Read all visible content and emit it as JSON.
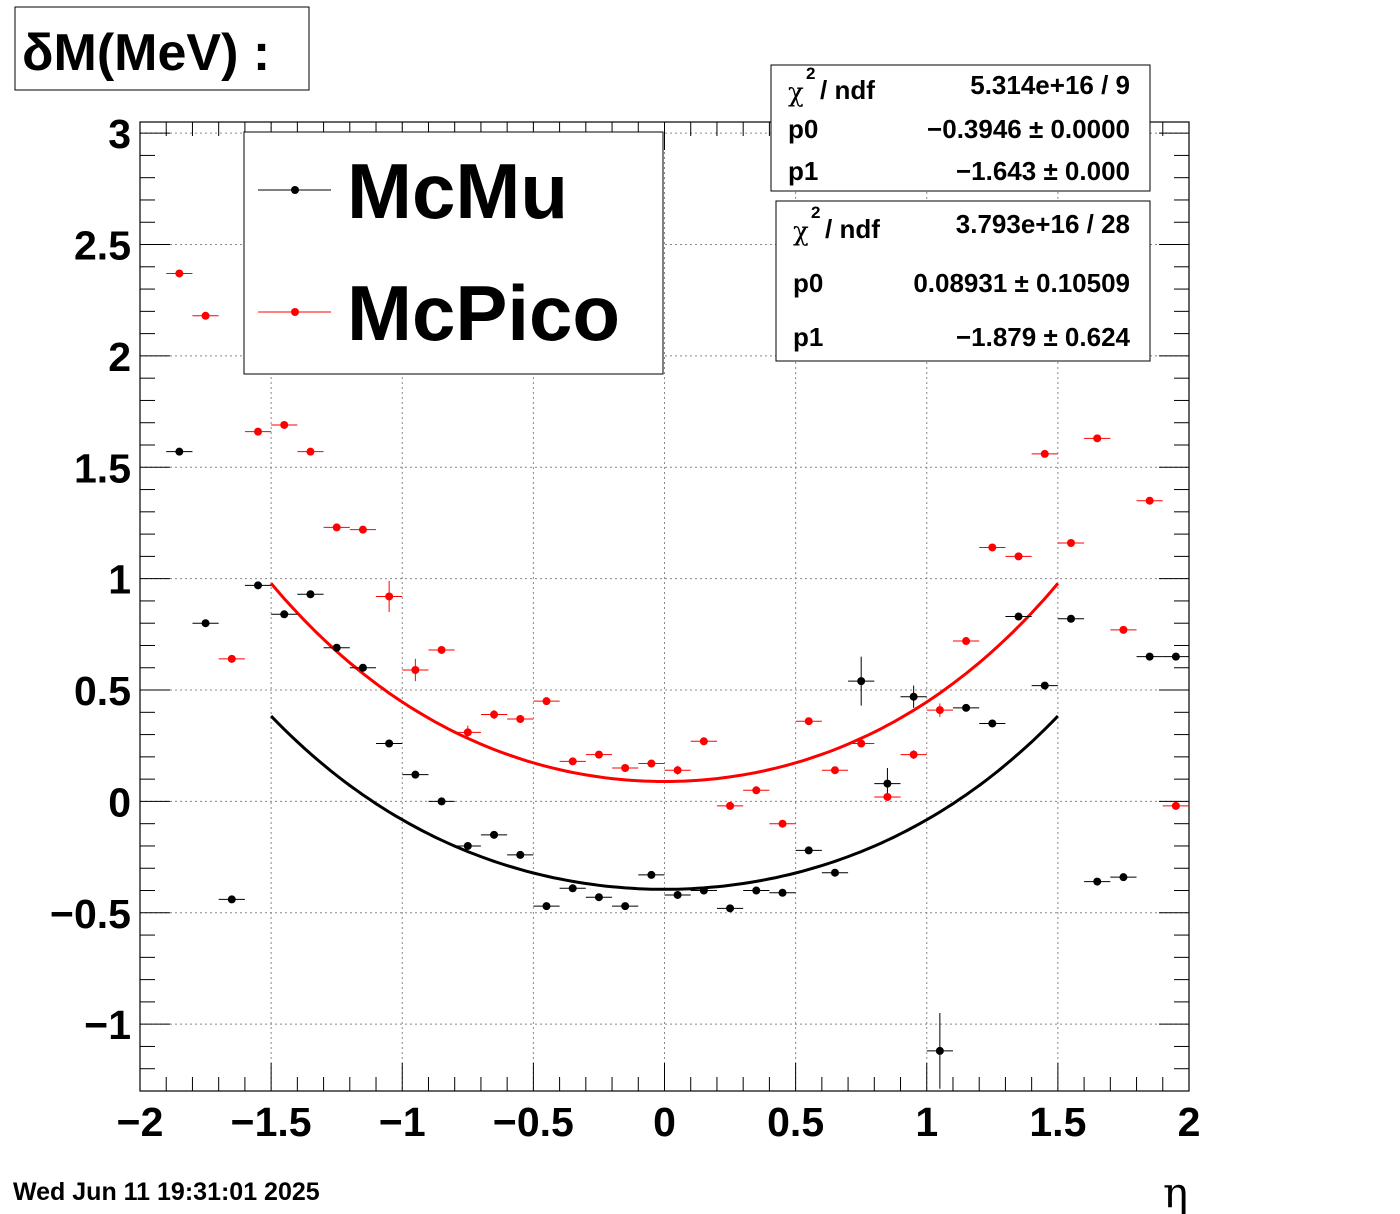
{
  "title": "δM(MeV) :",
  "footer_date": "Wed Jun 11 19:31:01 2025",
  "chart_data": {
    "type": "scatter",
    "xlabel": "η",
    "ylabel": "",
    "xlim": [
      -2,
      2
    ],
    "ylim": [
      -1.3,
      3.05
    ],
    "grid": true,
    "x_ticks": [
      "−2",
      "−1.5",
      "−1",
      "−0.5",
      "0",
      "0.5",
      "1",
      "1.5",
      "2"
    ],
    "y_ticks": [
      "−1",
      "−0.5",
      "0",
      "0.5",
      "1",
      "1.5",
      "2",
      "2.5",
      "3"
    ],
    "legend": {
      "placement": "top-left",
      "entries": [
        {
          "name": "McMu",
          "color": "#000000"
        },
        {
          "name": "McPico",
          "color": "#ff0000"
        }
      ]
    },
    "series": [
      {
        "name": "McMu",
        "color": "#000000",
        "x": [
          -1.85,
          -1.75,
          -1.65,
          -1.55,
          -1.45,
          -1.35,
          -1.25,
          -1.15,
          -1.05,
          -0.95,
          -0.85,
          -0.75,
          -0.65,
          -0.55,
          -0.45,
          -0.35,
          -0.25,
          -0.15,
          -0.05,
          0.05,
          0.15,
          0.25,
          0.35,
          0.45,
          0.55,
          0.65,
          0.75,
          0.85,
          0.95,
          1.05,
          1.15,
          1.25,
          1.35,
          1.45,
          1.55,
          1.65,
          1.75,
          1.85,
          1.95
        ],
        "y": [
          1.57,
          0.8,
          -0.44,
          0.97,
          0.84,
          0.93,
          0.69,
          0.6,
          0.26,
          0.12,
          0.0,
          -0.2,
          -0.15,
          -0.24,
          -0.47,
          -0.39,
          -0.43,
          -0.47,
          -0.33,
          -0.42,
          -0.4,
          -0.48,
          -0.4,
          -0.41,
          -0.22,
          -0.32,
          0.54,
          0.08,
          0.47,
          -1.12,
          0.42,
          0.35,
          0.83,
          0.52,
          0.82,
          -0.36,
          -0.34,
          0.65,
          0.65
        ],
        "yerr": [
          0.01,
          0.01,
          0.01,
          0.01,
          0.01,
          0.01,
          0.01,
          0.01,
          0.01,
          0.01,
          0.01,
          0.01,
          0.01,
          0.01,
          0.01,
          0.01,
          0.01,
          0.01,
          0.01,
          0.01,
          0.01,
          0.01,
          0.01,
          0.01,
          0.01,
          0.01,
          0.11,
          0.07,
          0.05,
          0.17,
          0.01,
          0.01,
          0.01,
          0.01,
          0.01,
          0.01,
          0.01,
          0.01,
          0.01
        ],
        "fit": {
          "p0": -0.3946,
          "p1": -1.643,
          "range": [
            -1.5,
            1.5
          ]
        }
      },
      {
        "name": "McPico",
        "color": "#ff0000",
        "x": [
          -1.85,
          -1.75,
          -1.65,
          -1.55,
          -1.45,
          -1.35,
          -1.25,
          -1.15,
          -1.05,
          -0.95,
          -0.85,
          -0.75,
          -0.65,
          -0.55,
          -0.45,
          -0.35,
          -0.25,
          -0.15,
          -0.05,
          0.05,
          0.15,
          0.25,
          0.35,
          0.45,
          0.55,
          0.65,
          0.75,
          0.85,
          0.95,
          1.05,
          1.15,
          1.25,
          1.35,
          1.45,
          1.55,
          1.65,
          1.75,
          1.85,
          1.95
        ],
        "y": [
          2.37,
          2.18,
          0.64,
          1.66,
          1.69,
          1.57,
          1.23,
          1.22,
          0.92,
          0.59,
          0.68,
          0.31,
          0.39,
          0.37,
          0.45,
          0.18,
          0.21,
          0.15,
          0.17,
          0.14,
          0.27,
          -0.02,
          0.05,
          -0.1,
          0.36,
          0.14,
          0.26,
          0.02,
          0.21,
          0.41,
          0.72,
          1.14,
          1.1,
          1.56,
          1.16,
          1.63,
          0.77,
          1.35,
          -0.02
        ],
        "yerr": [
          0.01,
          0.01,
          0.01,
          0.01,
          0.01,
          0.01,
          0.01,
          0.01,
          0.07,
          0.05,
          0.01,
          0.03,
          0.02,
          0.01,
          0.01,
          0.01,
          0.01,
          0.01,
          0.01,
          0.02,
          0.01,
          0.01,
          0.01,
          0.01,
          0.01,
          0.01,
          0.01,
          0.01,
          0.02,
          0.03,
          0.01,
          0.01,
          0.01,
          0.01,
          0.01,
          0.01,
          0.01,
          0.01,
          0.01
        ],
        "fit": {
          "p0": 0.08931,
          "p1": -1.879,
          "range": [
            -1.5,
            1.5
          ]
        }
      }
    ],
    "stat_boxes": [
      {
        "series": "McMu",
        "rows": [
          {
            "label_chi": "χ",
            "label_sup": "2",
            "label_rest": " / ndf",
            "value": "5.314e+16 / 9"
          },
          {
            "label": "p0",
            "value": "−0.3946 ± 0.0000"
          },
          {
            "label": "p1",
            "value": "−1.643 ± 0.000"
          }
        ]
      },
      {
        "series": "McPico",
        "rows": [
          {
            "label_chi": "χ",
            "label_sup": "2",
            "label_rest": " / ndf",
            "value": "3.793e+16 / 28"
          },
          {
            "label": "p0",
            "value": "0.08931 ± 0.10509"
          },
          {
            "label": "p1",
            "value": "−1.879 ± 0.624"
          }
        ]
      }
    ]
  }
}
